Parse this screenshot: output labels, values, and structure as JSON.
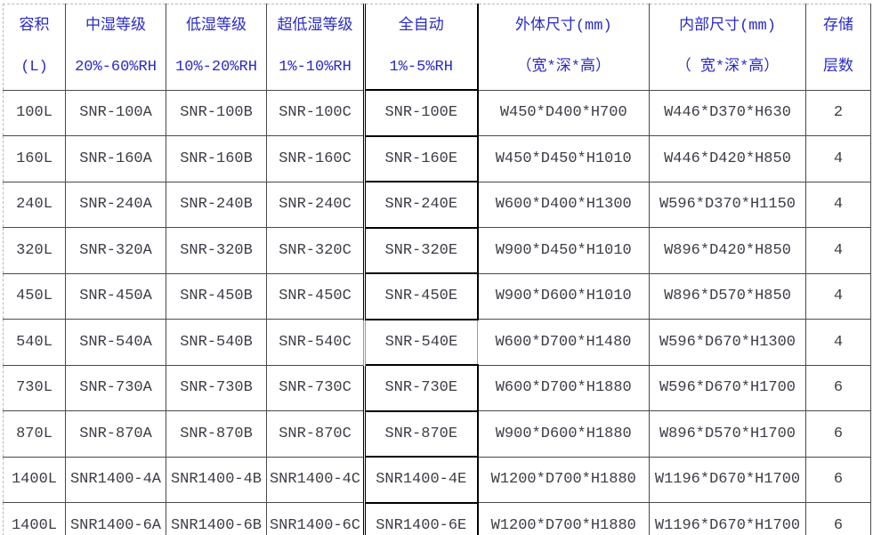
{
  "colors": {
    "header_text": "#2a2ac8",
    "body_text": "#3d3d46",
    "emphasis_border": "#000000"
  },
  "table": {
    "headers": [
      {
        "line1": "容积",
        "line2": "(L)"
      },
      {
        "line1": "中湿等级",
        "line2": "20%-60%RH"
      },
      {
        "line1": "低湿等级",
        "line2": "10%-20%RH"
      },
      {
        "line1": "超低湿等级",
        "line2": "1%-10%RH"
      },
      {
        "line1": "全自动",
        "line2": "1%-5%RH"
      },
      {
        "line1": "外体尺寸(mm)",
        "line2": "（宽*深*高）"
      },
      {
        "line1": "内部尺寸(mm)",
        "line2": "（ 宽*深*高）"
      },
      {
        "line1": "存储",
        "line2": "层数"
      }
    ],
    "rows": [
      [
        "100L",
        "SNR-100A",
        "SNR-100B",
        "SNR-100C",
        "SNR-100E",
        "W450*D400*H700",
        "W446*D370*H630",
        "2"
      ],
      [
        "160L",
        "SNR-160A",
        "SNR-160B",
        "SNR-160C",
        "SNR-160E",
        "W450*D450*H1010",
        "W446*D420*H850",
        "4"
      ],
      [
        "240L",
        "SNR-240A",
        "SNR-240B",
        "SNR-240C",
        "SNR-240E",
        "W600*D400*H1300",
        "W596*D370*H1150",
        "4"
      ],
      [
        "320L",
        "SNR-320A",
        "SNR-320B",
        "SNR-320C",
        "SNR-320E",
        "W900*D450*H1010",
        "W896*D420*H850",
        "4"
      ],
      [
        "450L",
        "SNR-450A",
        "SNR-450B",
        "SNR-450C",
        "SNR-450E",
        "W900*D600*H1010",
        "W896*D570*H850",
        "4"
      ],
      [
        "540L",
        "SNR-540A",
        "SNR-540B",
        "SNR-540C",
        "SNR-540E",
        "W600*D700*H1480",
        "W596*D670*H1300",
        "4"
      ],
      [
        "730L",
        "SNR-730A",
        "SNR-730B",
        "SNR-730C",
        "SNR-730E",
        "W600*D700*H1880",
        "W596*D670*H1700",
        "6"
      ],
      [
        "870L",
        "SNR-870A",
        "SNR-870B",
        "SNR-870C",
        "SNR-870E",
        "W900*D600*H1880",
        "W896*D570*H1700",
        "6"
      ],
      [
        "1400L",
        "SNR1400-4A",
        "SNR1400-4B",
        "SNR1400-4C",
        "SNR1400-4E",
        "W1200*D700*H1880",
        "W1196*D670*H1700",
        "6"
      ],
      [
        "1400L",
        "SNR1400-6A",
        "SNR1400-6B",
        "SNR1400-6C",
        "SNR1400-6E",
        "W1200*D700*H1880",
        "W1196*D670*H1700",
        "6"
      ]
    ]
  }
}
